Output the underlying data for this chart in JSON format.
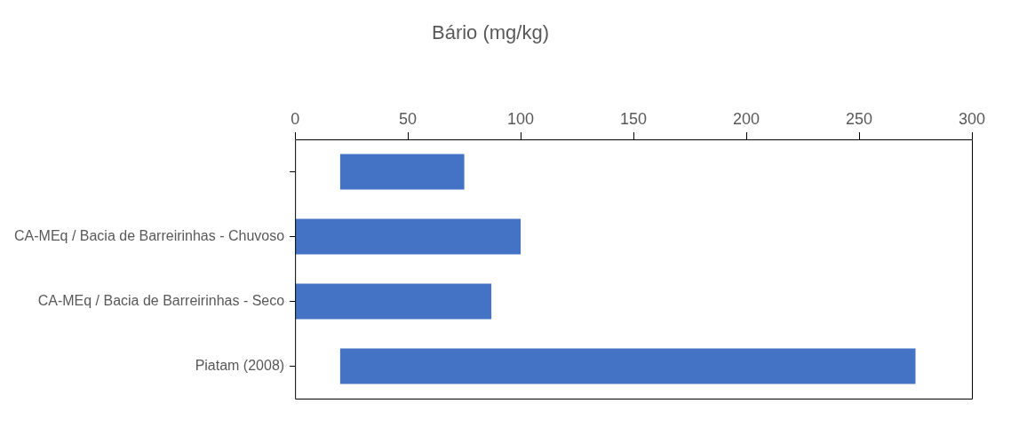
{
  "chart_data": {
    "type": "bar",
    "orientation": "horizontal",
    "title": "Bário (mg/kg)",
    "categories": [
      null,
      "CA-MEq / Bacia de Barreirinhas - Chuvoso",
      "CA-MEq / Bacia de Barreirinhas - Seco",
      "Piatam (2008)"
    ],
    "values": [
      55,
      100,
      87,
      255
    ],
    "base": [
      20,
      0,
      0,
      20
    ],
    "color": "#4472c4",
    "xlim": [
      0,
      300
    ],
    "xticks": [
      0,
      50,
      100,
      150,
      200,
      250,
      300
    ],
    "grid": false,
    "legend": false
  }
}
